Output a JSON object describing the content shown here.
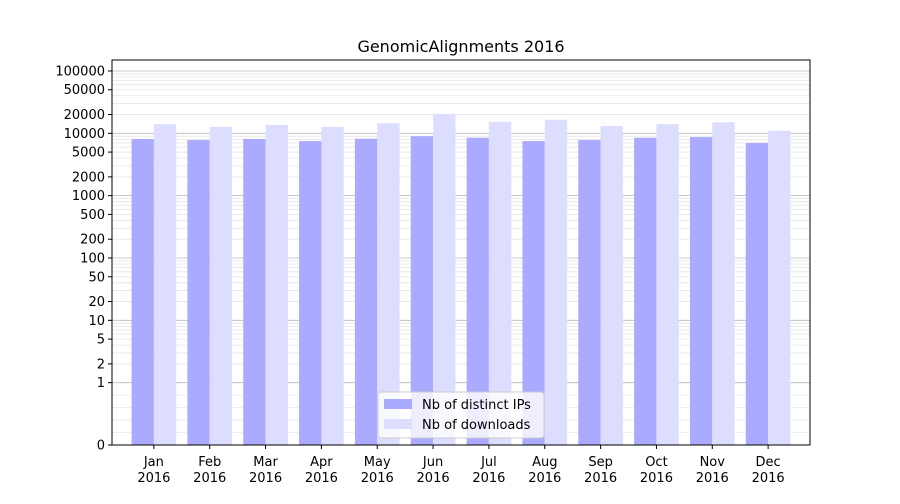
{
  "chart_data": {
    "type": "bar",
    "title": "GenomicAlignments 2016",
    "xlabel": "",
    "ylabel": "",
    "yscale": "symlog",
    "ylim": [
      0,
      150000
    ],
    "y_ticks": [
      {
        "value": 0,
        "label": "0"
      },
      {
        "value": 1,
        "label": "1"
      },
      {
        "value": 2,
        "label": "2"
      },
      {
        "value": 5,
        "label": "5"
      },
      {
        "value": 10,
        "label": "10"
      },
      {
        "value": 20,
        "label": "20"
      },
      {
        "value": 50,
        "label": "50"
      },
      {
        "value": 100,
        "label": "100"
      },
      {
        "value": 200,
        "label": "200"
      },
      {
        "value": 500,
        "label": "500"
      },
      {
        "value": 1000,
        "label": "1000"
      },
      {
        "value": 2000,
        "label": "2000"
      },
      {
        "value": 5000,
        "label": "5000"
      },
      {
        "value": 10000,
        "label": "10000"
      },
      {
        "value": 20000,
        "label": "20000"
      },
      {
        "value": 50000,
        "label": "50000"
      },
      {
        "value": 100000,
        "label": "100000"
      }
    ],
    "categories": [
      {
        "month": "Jan",
        "year": "2016"
      },
      {
        "month": "Feb",
        "year": "2016"
      },
      {
        "month": "Mar",
        "year": "2016"
      },
      {
        "month": "Apr",
        "year": "2016"
      },
      {
        "month": "May",
        "year": "2016"
      },
      {
        "month": "Jun",
        "year": "2016"
      },
      {
        "month": "Jul",
        "year": "2016"
      },
      {
        "month": "Aug",
        "year": "2016"
      },
      {
        "month": "Sep",
        "year": "2016"
      },
      {
        "month": "Oct",
        "year": "2016"
      },
      {
        "month": "Nov",
        "year": "2016"
      },
      {
        "month": "Dec",
        "year": "2016"
      }
    ],
    "series": [
      {
        "name": "Nb of distinct IPs",
        "color": "#aaaaff",
        "values": [
          8100,
          7800,
          8100,
          7500,
          8200,
          9000,
          8500,
          7500,
          7800,
          8500,
          8700,
          7000
        ]
      },
      {
        "name": "Nb of downloads",
        "color": "#ddddff",
        "values": [
          14000,
          12700,
          13600,
          12700,
          14500,
          20500,
          15300,
          16500,
          13100,
          14000,
          15000,
          11000
        ]
      }
    ],
    "grid": true,
    "legend_position": "bottom-center"
  }
}
